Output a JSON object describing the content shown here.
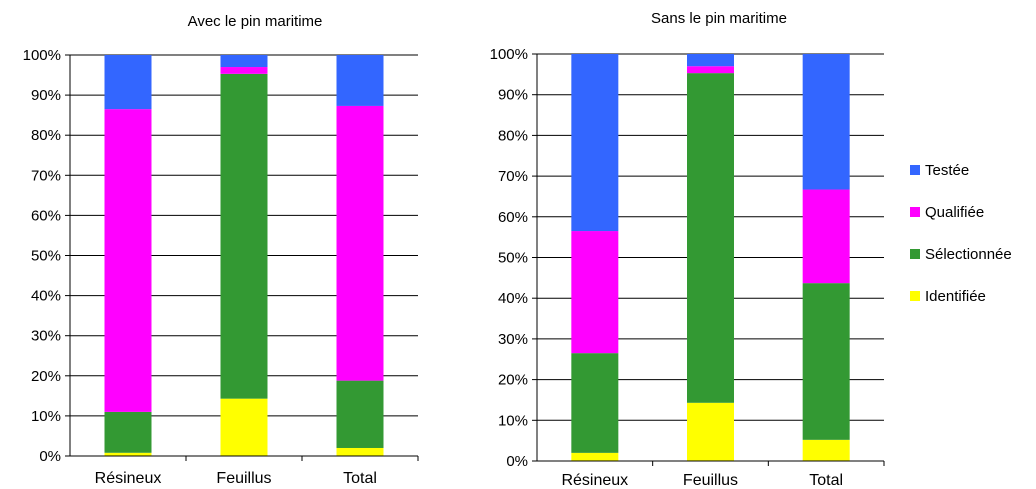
{
  "chart_data": [
    {
      "type": "bar",
      "stacked": true,
      "percent": true,
      "title": "Avec le pin maritime",
      "categories": [
        "Résineux",
        "Feuillus",
        "Total"
      ],
      "y_ticks": [
        "0%",
        "10%",
        "20%",
        "30%",
        "40%",
        "50%",
        "60%",
        "70%",
        "80%",
        "90%",
        "100%"
      ],
      "ylim": [
        0,
        100
      ],
      "series": [
        {
          "name": "Identifiée",
          "color": "#ffff00",
          "values": [
            0.8,
            14.3,
            2
          ]
        },
        {
          "name": "Sélectionnée",
          "color": "#339933",
          "values": [
            10.2,
            81,
            16.8
          ]
        },
        {
          "name": "Qualifiée",
          "color": "#ff00ff",
          "values": [
            75.5,
            1.7,
            68.5
          ]
        },
        {
          "name": "Testée",
          "color": "#3366ff",
          "values": [
            13.5,
            3,
            12.7
          ]
        }
      ]
    },
    {
      "type": "bar",
      "stacked": true,
      "percent": true,
      "title": "Sans le pin maritime",
      "categories": [
        "Résineux",
        "Feuillus",
        "Total"
      ],
      "y_ticks": [
        "0%",
        "10%",
        "20%",
        "30%",
        "40%",
        "50%",
        "60%",
        "70%",
        "80%",
        "90%",
        "100%"
      ],
      "ylim": [
        0,
        100
      ],
      "series": [
        {
          "name": "Identifiée",
          "color": "#ffff00",
          "values": [
            2,
            14.3,
            5.2
          ]
        },
        {
          "name": "Sélectionnée",
          "color": "#339933",
          "values": [
            24.5,
            81,
            38.5
          ]
        },
        {
          "name": "Qualifiée",
          "color": "#ff00ff",
          "values": [
            30,
            1.7,
            23
          ]
        },
        {
          "name": "Testée",
          "color": "#3366ff",
          "values": [
            43.5,
            3,
            33.3
          ]
        }
      ]
    }
  ],
  "legend": {
    "position": "right",
    "items": [
      {
        "label": "Testée",
        "color": "#3366ff"
      },
      {
        "label": "Qualifiée",
        "color": "#ff00ff"
      },
      {
        "label": "Sélectionnée",
        "color": "#339933"
      },
      {
        "label": "Identifiée",
        "color": "#ffff00"
      }
    ]
  }
}
